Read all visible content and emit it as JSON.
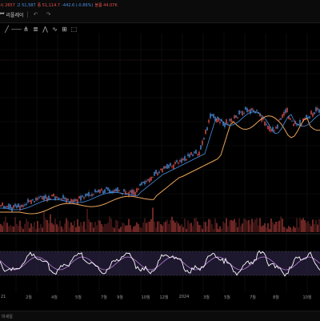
{
  "header": {
    "ohlc": [
      {
        "label": "시",
        "value": "2657",
        "tone": "up"
      },
      {
        "label": "",
        "value": "고 51,587",
        "tone": "down"
      },
      {
        "label": "",
        "value": "종 51,114.7",
        "tone": "up"
      },
      {
        "label": "",
        "value": "-442.6 (-0.86%)",
        "tone": "down"
      },
      {
        "label": "",
        "value": "볼륨 44.07K",
        "tone": "up"
      }
    ],
    "replay_label": "리플레이",
    "replay_icon": "replay-icon",
    "undo_icon": "undo-icon",
    "redo_icon": "redo-icon"
  },
  "drawing_tools": [
    {
      "name": "trend-line-tool-icon",
      "glyph": "╱"
    },
    {
      "name": "horizontal-line-tool-icon",
      "glyph": "⸺"
    },
    {
      "name": "pitchfork-tool-icon",
      "glyph": "⋔"
    },
    {
      "name": "fib-tool-icon",
      "glyph": "≣"
    },
    {
      "name": "pattern-tool-icon",
      "glyph": "⋀"
    },
    {
      "name": "elliott-wave-tool-icon",
      "glyph": "∿"
    },
    {
      "name": "gann-tool-icon",
      "glyph": "⊞"
    },
    {
      "name": "measure-tool-icon",
      "glyph": "⬚"
    }
  ],
  "x_axis": {
    "ticks": [
      "21",
      "2월",
      "4월",
      "5월",
      "7월",
      "9월",
      "10월",
      "12월",
      "2024",
      "3월",
      "5월",
      "7월",
      "8월",
      "10월"
    ]
  },
  "footer": {
    "label": "미세일"
  },
  "colors": {
    "up": "#e0504a",
    "down": "#4a8fe0",
    "ma_long": "#e8a35c",
    "ma_short": "#4a8fe0",
    "rsi": "#ffffff",
    "rsi_ma": "#b57cd8",
    "volume": "#e0504a",
    "rsi_band": "#2b2242"
  }
}
